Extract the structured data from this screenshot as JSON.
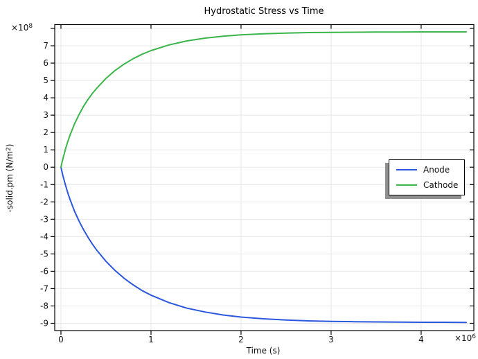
{
  "chart_data": {
    "type": "line",
    "title": "Hydrostatic Stress vs Time",
    "xlabel": "Time (s)",
    "ylabel": "-solid.pm (N/m²)",
    "ylabel_parts": {
      "pre": "-solid.pm (N/m",
      "exponent": "2",
      "post": ")"
    },
    "x_multiplier": {
      "base": "×10",
      "exponent": "6"
    },
    "y_multiplier": {
      "base": "×10",
      "exponent": "8"
    },
    "x_values_unit": "1e6 s",
    "y_values_unit": "1e8 N/m^2",
    "xlim": [
      -0.069,
      4.585
    ],
    "ylim": [
      -9.42,
      8.22
    ],
    "x_ticks": [
      0,
      1,
      2,
      3,
      4
    ],
    "x_tick_labels": [
      "0",
      "1",
      "2",
      "3",
      "4"
    ],
    "y_ticks": [
      -9,
      -8,
      -7,
      -6,
      -5,
      -4,
      -3,
      -2,
      -1,
      0,
      1,
      2,
      3,
      4,
      5,
      6,
      7,
      8
    ],
    "y_tick_labels": [
      "-9",
      "-8",
      "-7",
      "-6",
      "-5",
      "-4",
      "-3",
      "-2",
      "-1",
      "0",
      "1",
      "2",
      "3",
      "4",
      "5",
      "6",
      "7",
      ""
    ],
    "grid": true,
    "grid_color": "#e8e8e8",
    "frame_color": "#000000",
    "legend_position": "middle-right",
    "legend_shadow_color": "#8f8f8f",
    "series": [
      {
        "name": "Anode",
        "color": "#2a57de",
        "x": [
          0,
          0.01,
          0.025,
          0.05,
          0.075,
          0.1,
          0.15,
          0.2,
          0.25,
          0.3,
          0.35,
          0.4,
          0.5,
          0.6,
          0.7,
          0.8,
          0.9,
          1.0,
          1.2,
          1.4,
          1.6,
          1.8,
          2.0,
          2.25,
          2.5,
          2.75,
          3.0,
          3.25,
          3.5,
          3.75,
          4.0,
          4.25,
          4.5
        ],
        "y": [
          0,
          -0.23,
          -0.55,
          -1.03,
          -1.46,
          -1.85,
          -2.53,
          -3.1,
          -3.6,
          -4.04,
          -4.44,
          -4.8,
          -5.43,
          -5.95,
          -6.4,
          -6.78,
          -7.11,
          -7.38,
          -7.81,
          -8.13,
          -8.35,
          -8.52,
          -8.64,
          -8.74,
          -8.81,
          -8.86,
          -8.89,
          -8.91,
          -8.92,
          -8.93,
          -8.94,
          -8.94,
          -8.95
        ]
      },
      {
        "name": "Cathode",
        "color": "#3bb54a",
        "x": [
          0,
          0.01,
          0.025,
          0.05,
          0.075,
          0.1,
          0.15,
          0.2,
          0.25,
          0.3,
          0.35,
          0.4,
          0.5,
          0.6,
          0.7,
          0.8,
          0.9,
          1.0,
          1.2,
          1.4,
          1.6,
          1.8,
          2.0,
          2.25,
          2.5,
          2.75,
          3.0,
          3.25,
          3.5,
          3.75,
          4.0,
          4.25,
          4.5
        ],
        "y": [
          0,
          0.23,
          0.55,
          1.04,
          1.46,
          1.84,
          2.49,
          3.03,
          3.5,
          3.9,
          4.26,
          4.57,
          5.12,
          5.57,
          5.94,
          6.25,
          6.51,
          6.72,
          7.05,
          7.28,
          7.44,
          7.55,
          7.63,
          7.69,
          7.73,
          7.76,
          7.77,
          7.78,
          7.79,
          7.79,
          7.8,
          7.8,
          7.8
        ]
      }
    ]
  }
}
